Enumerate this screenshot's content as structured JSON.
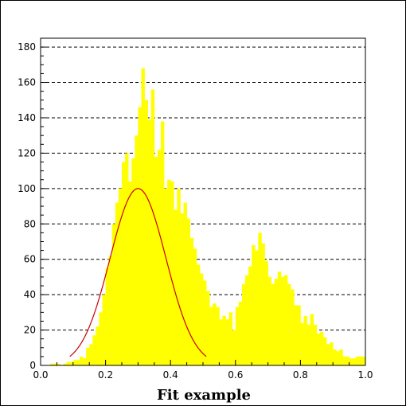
{
  "chart_data": {
    "type": "bar",
    "xlabel": "Fit example",
    "ylabel": "",
    "xlim": [
      0.0,
      1.0
    ],
    "ylim": [
      0,
      185
    ],
    "xticks": [
      0.0,
      0.2,
      0.4,
      0.6,
      0.8,
      1.0
    ],
    "xtick_labels": [
      "0.0",
      "0.2",
      "0.4",
      "0.6",
      "0.8",
      "1.0"
    ],
    "yticks": [
      0,
      20,
      40,
      60,
      80,
      100,
      120,
      140,
      160,
      180
    ],
    "ytick_labels": [
      "0",
      "20",
      "40",
      "60",
      "80",
      "100",
      "120",
      "140",
      "160",
      "180"
    ],
    "grid": "horizontal-dashed",
    "bar_color": "#ffff00",
    "fit_color": "#cc0000",
    "bins": {
      "start": 0.0,
      "width": 0.01
    },
    "values": [
      0,
      0,
      0,
      1,
      1,
      1,
      0,
      1,
      2,
      2,
      3,
      3,
      5,
      4,
      10,
      12,
      17,
      22,
      30,
      40,
      55,
      62,
      80,
      92,
      100,
      115,
      120,
      104,
      117,
      130,
      146,
      168,
      150,
      139,
      156,
      118,
      122,
      138,
      100,
      105,
      104,
      88,
      100,
      86,
      92,
      83,
      72,
      66,
      57,
      52,
      48,
      42,
      33,
      35,
      33,
      26,
      28,
      26,
      30,
      20,
      33,
      36,
      46,
      51,
      56,
      68,
      65,
      75,
      69,
      59,
      50,
      46,
      49,
      53,
      50,
      51,
      46,
      43,
      34,
      34,
      24,
      28,
      23,
      29,
      23,
      18,
      19,
      16,
      12,
      13,
      9,
      8,
      9,
      5,
      5,
      4,
      4,
      5,
      5,
      5
    ],
    "fit": {
      "type": "gaussian",
      "amplitude": 100,
      "mean": 0.3,
      "sigma": 0.086,
      "x_range": [
        0.09,
        0.51
      ]
    }
  }
}
